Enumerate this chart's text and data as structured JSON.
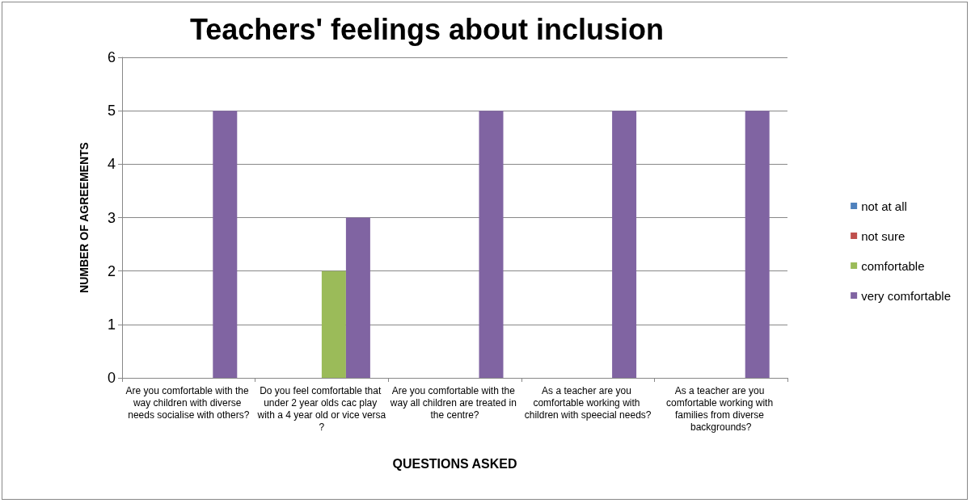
{
  "chart_data": {
    "type": "bar",
    "title": "Teachers' feelings about inclusion",
    "xlabel": "QUESTIONS ASKED",
    "ylabel": "NUMBER OF AGREEMENTS",
    "categories": [
      "Are you comfortable with the way children with diverse needs socialise with others?",
      "Do you feel comfortable that under 2 year olds cac play with a 4 year old or vice versa?",
      "Are you comfortable with the way all children are treated in the centre?",
      "As a teacher are you comfortable working with children with speecial needs?",
      "As a teacher are you comfortable working with families from diverse backgrounds?"
    ],
    "series": [
      {
        "name": "not at all",
        "color": "#4f81bd",
        "values": [
          0,
          0,
          0,
          0,
          0
        ]
      },
      {
        "name": "not sure",
        "color": "#c0504d",
        "values": [
          0,
          0,
          0,
          0,
          0
        ]
      },
      {
        "name": "comfortable",
        "color": "#9bbb59",
        "values": [
          0,
          2,
          0,
          0,
          0
        ]
      },
      {
        "name": "very comfortable",
        "color": "#8064a2",
        "values": [
          5,
          3,
          5,
          5,
          5
        ]
      }
    ],
    "ylim": [
      0,
      6
    ],
    "yticks": [
      0,
      1,
      2,
      3,
      4,
      5,
      6
    ],
    "grid": "y",
    "legend": "right"
  }
}
